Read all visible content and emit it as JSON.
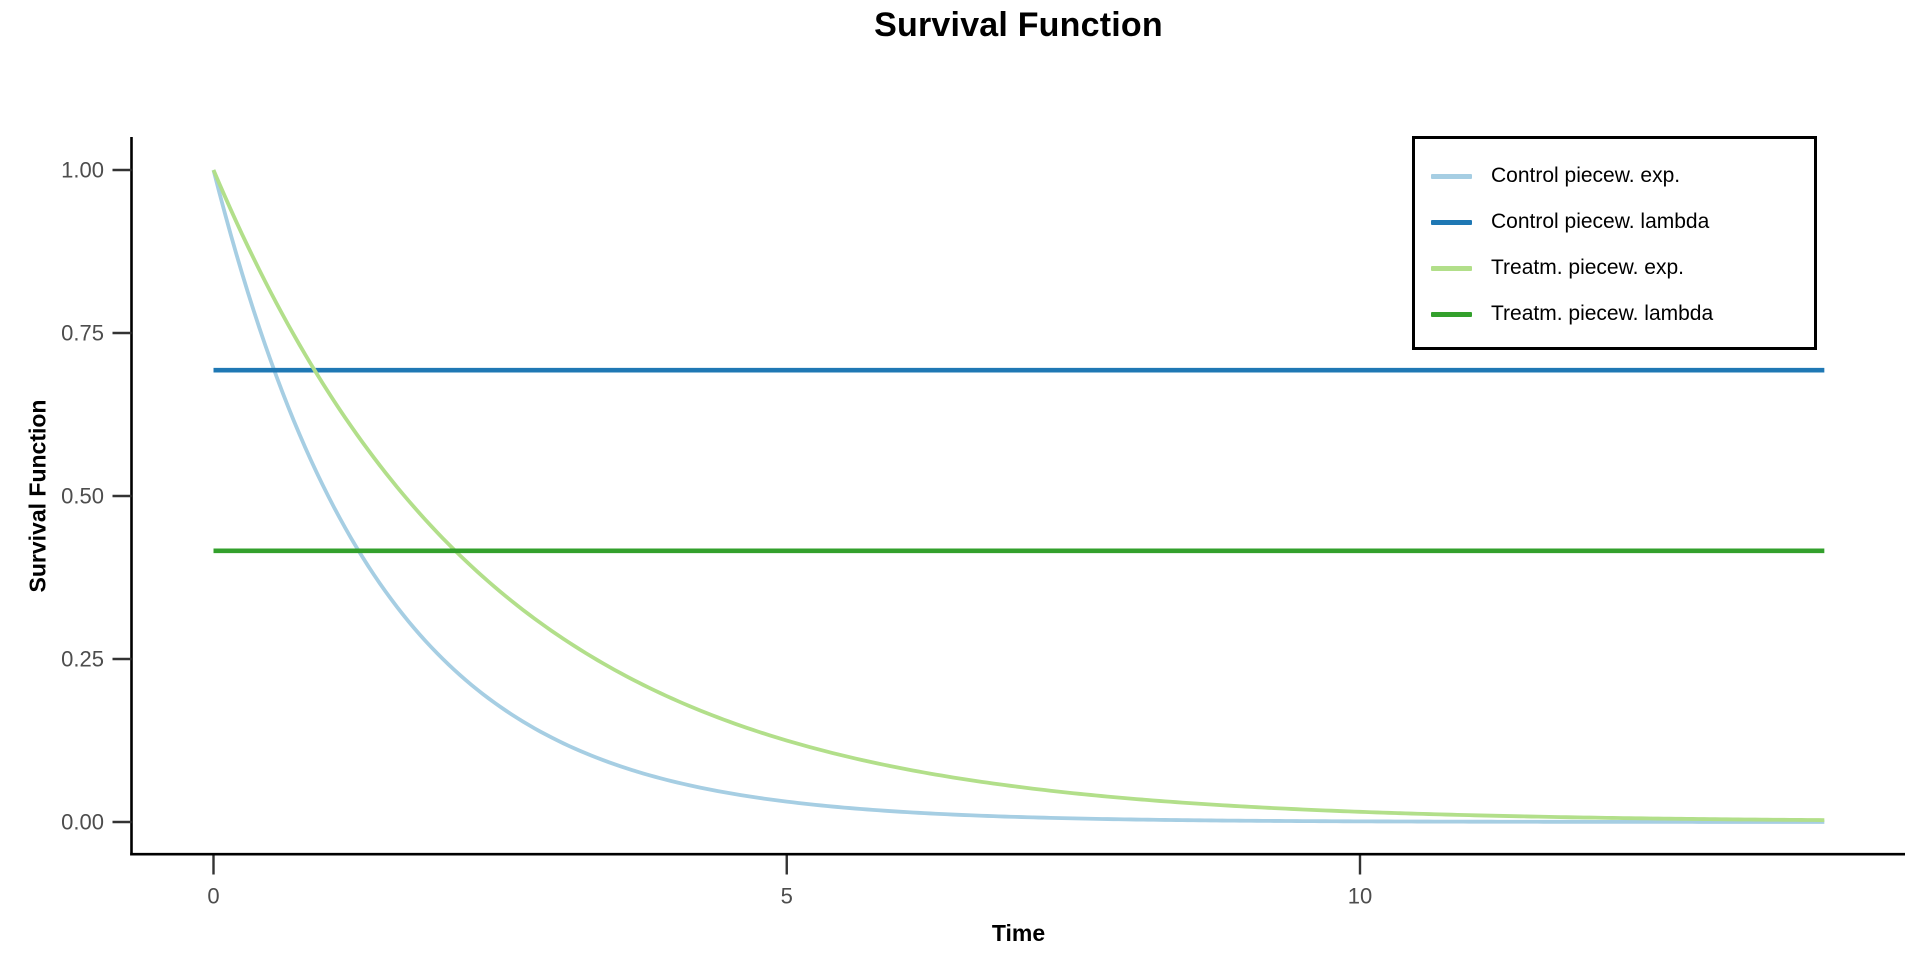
{
  "title": "Survival Function",
  "x_axis": {
    "label": "Time"
  },
  "y_axis": {
    "label": "Survival Function"
  },
  "colors": {
    "axis_line": "#000000",
    "tick_mark": "#333333",
    "tick_label": "#4d4d4d",
    "legend_border": "#000000",
    "background": "#ffffff"
  },
  "chart_data": {
    "type": "line",
    "title": "Survival Function",
    "xlabel": "Time",
    "ylabel": "Survival Function",
    "xlim": [
      -0.7,
      14.75
    ],
    "ylim": [
      -0.05,
      1.05
    ],
    "grid": false,
    "legend_position": "top-right",
    "x_ticks": [
      {
        "value": 0,
        "label": "0"
      },
      {
        "value": 5,
        "label": "5"
      },
      {
        "value": 10,
        "label": "10"
      }
    ],
    "y_ticks": [
      {
        "value": 0,
        "label": "0.00"
      },
      {
        "value": 0.25,
        "label": "0.25"
      },
      {
        "value": 0.5,
        "label": "0.50"
      },
      {
        "value": 0.75,
        "label": "0.75"
      },
      {
        "value": 1,
        "label": "1.00"
      }
    ],
    "series": [
      {
        "name": "Control piecew. exp.",
        "color": "#a6cee3",
        "kind": "exponential_curve",
        "lambda": 0.693,
        "t_range": [
          0,
          14.05
        ],
        "points": [
          [
            0,
            1
          ],
          [
            0.5,
            0.707
          ],
          [
            1,
            0.5
          ],
          [
            1.5,
            0.354
          ],
          [
            2,
            0.25
          ],
          [
            2.5,
            0.177
          ],
          [
            3,
            0.125
          ],
          [
            3.5,
            0.088
          ],
          [
            4,
            0.063
          ],
          [
            5,
            0.031
          ],
          [
            6,
            0.016
          ],
          [
            7,
            0.008
          ],
          [
            8,
            0.004
          ],
          [
            9,
            0.002
          ],
          [
            10,
            0.001
          ],
          [
            12,
            0.0002
          ],
          [
            14,
            0.0001
          ]
        ]
      },
      {
        "name": "Control piecew. lambda",
        "color": "#1f78b4",
        "kind": "hline",
        "value": 0.693,
        "t_range": [
          0,
          14.05
        ]
      },
      {
        "name": "Treatm. piecew. exp.",
        "color": "#b2df8a",
        "kind": "exponential_curve",
        "lambda": 0.416,
        "t_range": [
          0,
          14.05
        ],
        "points": [
          [
            0,
            1
          ],
          [
            0.5,
            0.812
          ],
          [
            1,
            0.66
          ],
          [
            1.5,
            0.536
          ],
          [
            2,
            0.435
          ],
          [
            2.5,
            0.353
          ],
          [
            3,
            0.287
          ],
          [
            3.5,
            0.233
          ],
          [
            4,
            0.189
          ],
          [
            5,
            0.125
          ],
          [
            6,
            0.082
          ],
          [
            7,
            0.054
          ],
          [
            8,
            0.036
          ],
          [
            9,
            0.024
          ],
          [
            10,
            0.016
          ],
          [
            12,
            0.007
          ],
          [
            14,
            0.003
          ]
        ]
      },
      {
        "name": "Treatm. piecew. lambda",
        "color": "#33a02c",
        "kind": "hline",
        "value": 0.416,
        "t_range": [
          0,
          14.05
        ]
      }
    ]
  }
}
